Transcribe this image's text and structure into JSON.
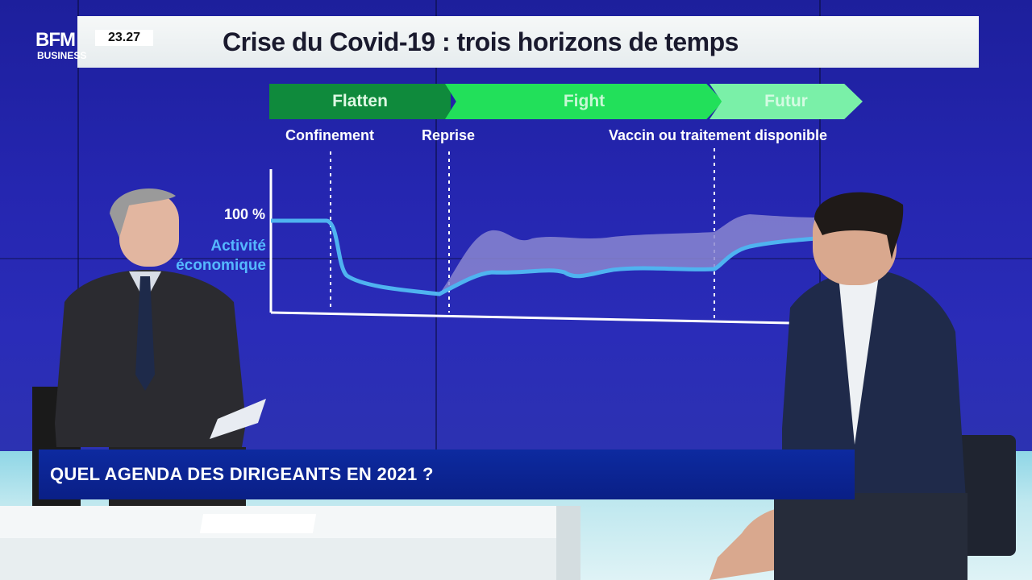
{
  "broadcaster": {
    "logo_top": "BFM",
    "logo_bottom": "BUSINESS",
    "clock": "23.27"
  },
  "board": {
    "title": "Crise du Covid-19 : trois horizons de temps",
    "phases": [
      {
        "label": "Flatten",
        "color": "#0f8a3c"
      },
      {
        "label": "Fight",
        "color": "#22e05a"
      },
      {
        "label": "Futur",
        "color": "#7af0a8"
      }
    ],
    "markers": [
      "Confinement",
      "Reprise",
      "Vaccin ou traitement disponible"
    ],
    "y_label": "100 %",
    "series_label": [
      "Activité",
      "économique"
    ]
  },
  "lower_third": {
    "headline": "QUEL AGENDA DES DIRIGEANTS EN 2021 ?"
  },
  "colors": {
    "wall": "#2526b0",
    "activity_line": "#4fb3f0",
    "band_fill": "#8a86d0",
    "lower_third": "#0a1f86"
  }
}
